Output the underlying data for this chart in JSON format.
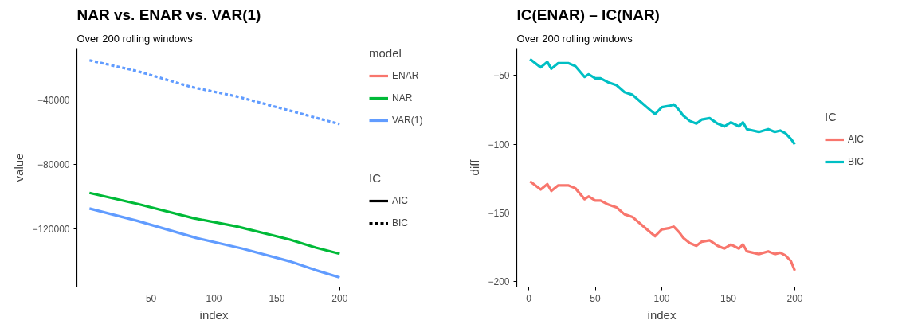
{
  "chart_data": [
    {
      "type": "line",
      "title": "NAR vs. ENAR vs. VAR(1)",
      "subtitle": "Over 200 rolling windows",
      "xlabel": "index",
      "ylabel": "value",
      "legend_title": [
        "model",
        "IC"
      ],
      "legend": "right",
      "grid": false,
      "xlim": [
        -9,
        209
      ],
      "xticks": [
        50,
        100,
        150,
        200
      ],
      "ylim": [
        -156500,
        -7500
      ],
      "yticks": [
        {
          "value": -40000,
          "label": "−40000"
        },
        {
          "value": -80000,
          "label": "−80000"
        },
        {
          "value": -120000,
          "label": "−120000"
        }
      ],
      "series": [
        {
          "name": "ENAR",
          "color": "#f8766d",
          "line_style": "solid"
        },
        {
          "name": "NAR",
          "color": "#00ba38",
          "line_style": "solid",
          "x": [
            1,
            39,
            84,
            118,
            160,
            181,
            200
          ],
          "values": [
            -97800,
            -104600,
            -113600,
            -118700,
            -126800,
            -131900,
            -135800
          ]
        },
        {
          "name": "VAR(1)",
          "color": "#619cff",
          "line_style": "solid",
          "x": [
            1,
            39,
            86,
            122,
            160,
            181,
            200
          ],
          "values": [
            -107500,
            -115200,
            -125900,
            -132400,
            -140400,
            -146000,
            -150500
          ]
        },
        {
          "color": "#619cff",
          "line_style": "dashed",
          "x": [
            1,
            39,
            82,
            118,
            160,
            181,
            200
          ],
          "values": [
            -15100,
            -21800,
            -31700,
            -37600,
            -46400,
            -50900,
            -54900
          ]
        },
        {
          "name": "AIC",
          "line_style": "solid"
        },
        {
          "name": "BIC",
          "line_style": "dashed"
        }
      ]
    },
    {
      "type": "line",
      "title": "IC(ENAR) – IC(NAR)",
      "subtitle": "Over 200 rolling windows",
      "xlabel": "index",
      "ylabel": "diff",
      "legend_title": "IC",
      "legend": "right",
      "grid": false,
      "xlim": [
        -9,
        209
      ],
      "xticks": [
        0,
        50,
        100,
        150,
        200
      ],
      "ylim": [
        -204,
        -30
      ],
      "yticks": [
        {
          "value": -50,
          "label": "−50"
        },
        {
          "value": -100,
          "label": "−100"
        },
        {
          "value": -150,
          "label": "−150"
        },
        {
          "value": -200,
          "label": "−200"
        }
      ],
      "x": [
        1,
        9,
        14,
        17,
        22,
        30,
        35,
        42,
        45,
        50,
        54,
        60,
        66,
        72,
        78,
        84,
        90,
        95,
        100,
        106,
        109,
        113,
        116,
        121,
        126,
        130,
        136,
        142,
        147,
        152,
        158,
        161,
        164,
        173,
        180,
        185,
        189,
        193,
        197,
        200
      ],
      "series": [
        {
          "name": "AIC",
          "color": "#f8766d",
          "line_style": "solid",
          "values": [
            -127,
            -133,
            -129,
            -134,
            -130,
            -130,
            -132,
            -140,
            -138,
            -141,
            -141,
            -144,
            -146,
            -151,
            -153,
            -158,
            -163,
            -167,
            -162,
            -161,
            -160,
            -164,
            -168,
            -172,
            -174,
            -171,
            -170,
            -174,
            -176,
            -173,
            -176,
            -173,
            -178,
            -180,
            -178,
            -180,
            -179,
            -181,
            -185,
            -192
          ]
        },
        {
          "name": "BIC",
          "color": "#00bfc4",
          "line_style": "solid",
          "values": [
            -38,
            -44,
            -40,
            -45,
            -41,
            -41,
            -43,
            -51,
            -49,
            -52,
            -52,
            -55,
            -57,
            -62,
            -64,
            -69,
            -74,
            -78,
            -73,
            -72,
            -71,
            -75,
            -79,
            -83,
            -85,
            -82,
            -81,
            -85,
            -87,
            -84,
            -87,
            -84,
            -89,
            -91,
            -89,
            -91,
            -90,
            -92,
            -96,
            -100
          ]
        }
      ]
    }
  ]
}
